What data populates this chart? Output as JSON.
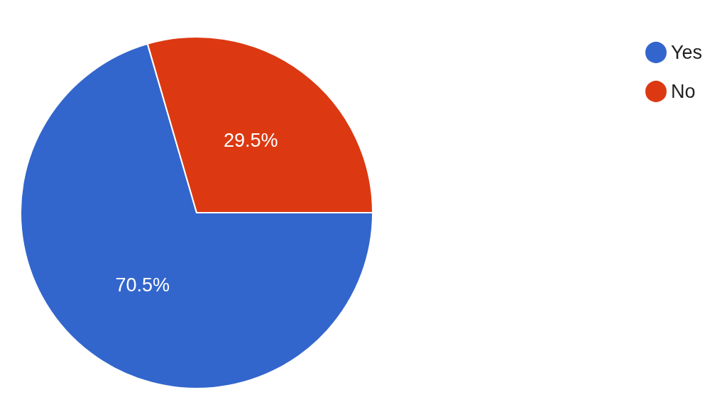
{
  "chart_data": {
    "type": "pie",
    "categories": [
      "Yes",
      "No"
    ],
    "values": [
      70.5,
      29.5
    ],
    "colors": [
      "#3366cc",
      "#dc3912"
    ],
    "value_labels": [
      "70.5%",
      "29.5%"
    ],
    "legend": "top right"
  }
}
